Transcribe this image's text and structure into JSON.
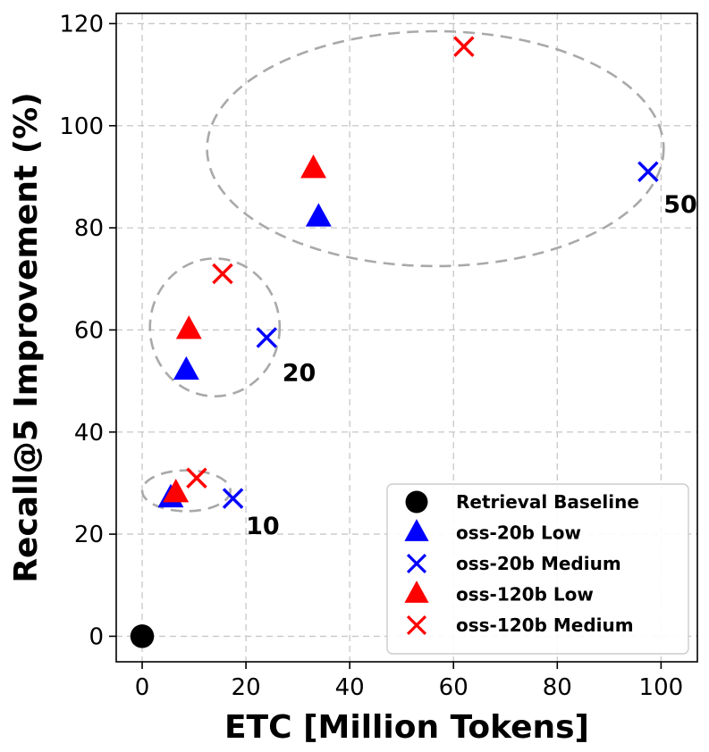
{
  "chart_data": {
    "type": "scatter",
    "title": "",
    "xlabel": "ETC [Million Tokens]",
    "ylabel": "Recall@5 Improvement (%)",
    "xlim": [
      -5,
      107
    ],
    "ylim": [
      -5,
      122
    ],
    "xticks": [
      0,
      20,
      40,
      60,
      80,
      100
    ],
    "yticks": [
      0,
      20,
      40,
      60,
      80,
      100,
      120
    ],
    "grid": true,
    "legend_position": "bottom-right",
    "series": [
      {
        "name": "Retrieval Baseline",
        "marker": "circle",
        "color": "#000000",
        "points": [
          {
            "x": 0,
            "y": 0
          }
        ]
      },
      {
        "name": "oss-20b Low",
        "marker": "triangle",
        "color": "#0000ff",
        "points": [
          {
            "x": 5.5,
            "y": 27
          },
          {
            "x": 8.5,
            "y": 52
          },
          {
            "x": 34,
            "y": 82
          }
        ]
      },
      {
        "name": "oss-20b Medium",
        "marker": "x",
        "color": "#0000ff",
        "points": [
          {
            "x": 17.5,
            "y": 27
          },
          {
            "x": 24,
            "y": 58.5
          },
          {
            "x": 97.5,
            "y": 91
          }
        ]
      },
      {
        "name": "oss-120b Low",
        "marker": "triangle",
        "color": "#ff0000",
        "points": [
          {
            "x": 6.5,
            "y": 28
          },
          {
            "x": 9,
            "y": 60
          },
          {
            "x": 33,
            "y": 91.5
          }
        ]
      },
      {
        "name": "oss-120b Medium",
        "marker": "x",
        "color": "#ff0000",
        "points": [
          {
            "x": 10.5,
            "y": 31
          },
          {
            "x": 15.5,
            "y": 71
          },
          {
            "x": 62,
            "y": 115.5
          }
        ]
      }
    ],
    "groups": [
      {
        "label": "10",
        "center": {
          "x": 8.5,
          "y": 28.5
        },
        "radius": {
          "x": 8.5,
          "y": 4
        },
        "label_anchor": {
          "x": 20,
          "y": 20
        }
      },
      {
        "label": "20",
        "center": {
          "x": 14,
          "y": 60.5
        },
        "radius": {
          "x": 12.5,
          "y": 13.5
        },
        "label_anchor": {
          "x": 27,
          "y": 50
        }
      },
      {
        "label": "50",
        "center": {
          "x": 56.5,
          "y": 95.5
        },
        "radius": {
          "x": 44,
          "y": 23
        },
        "label_anchor": {
          "x": 100.5,
          "y": 83
        }
      }
    ]
  }
}
